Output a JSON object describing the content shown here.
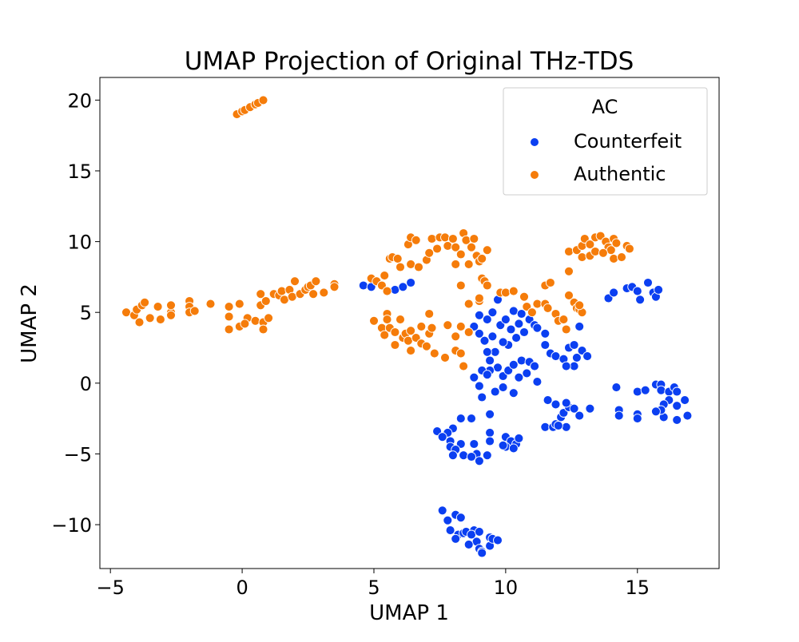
{
  "chart_data": {
    "type": "scatter",
    "title": "UMAP Projection of Original THz-TDS",
    "xlabel": "UMAP 1",
    "ylabel": "UMAP 2",
    "xlim": [
      -5.4,
      18.1
    ],
    "ylim": [
      -13.1,
      21.6
    ],
    "xticks": [
      -5,
      0,
      5,
      10,
      15
    ],
    "xtick_labels": [
      "−5",
      "0",
      "5",
      "10",
      "15"
    ],
    "yticks": [
      -10,
      -5,
      0,
      5,
      10,
      15,
      20
    ],
    "ytick_labels": [
      "−10",
      "−5",
      "0",
      "5",
      "10",
      "15",
      "20"
    ],
    "grid": false,
    "legend": {
      "title": "AC",
      "placement": "top-right"
    },
    "series": [
      {
        "name": "Counterfeit",
        "color": "#0b3ff1",
        "points": [
          [
            4.6,
            6.9
          ],
          [
            4.9,
            6.8
          ],
          [
            5.8,
            6.6
          ],
          [
            6.1,
            6.8
          ],
          [
            6.4,
            7.1
          ],
          [
            8.8,
            4.0
          ],
          [
            9.0,
            4.8
          ],
          [
            9.3,
            4.5
          ],
          [
            9.5,
            5.0
          ],
          [
            9.0,
            3.5
          ],
          [
            9.2,
            3.0
          ],
          [
            9.5,
            3.3
          ],
          [
            9.8,
            4.1
          ],
          [
            9.7,
            5.9
          ],
          [
            10.0,
            4.5
          ],
          [
            10.2,
            3.8
          ],
          [
            10.5,
            4.2
          ],
          [
            10.3,
            5.1
          ],
          [
            10.6,
            4.9
          ],
          [
            10.9,
            4.5
          ],
          [
            11.1,
            4.1
          ],
          [
            10.7,
            3.6
          ],
          [
            10.4,
            3.2
          ],
          [
            10.1,
            2.7
          ],
          [
            9.9,
            2.9
          ],
          [
            9.6,
            2.2
          ],
          [
            9.3,
            2.2
          ],
          [
            9.4,
            1.6
          ],
          [
            9.7,
            1.1
          ],
          [
            9.4,
            0.9
          ],
          [
            9.1,
            0.9
          ],
          [
            8.8,
            0.4
          ],
          [
            9.3,
            0.6
          ],
          [
            9.9,
            0.5
          ],
          [
            10.1,
            0.9
          ],
          [
            10.3,
            1.3
          ],
          [
            10.6,
            1.6
          ],
          [
            10.9,
            1.5
          ],
          [
            11.1,
            1.2
          ],
          [
            10.8,
            0.7
          ],
          [
            10.5,
            0.4
          ],
          [
            9.9,
            -0.3
          ],
          [
            10.3,
            -0.7
          ],
          [
            9.6,
            -0.6
          ],
          [
            9.1,
            -1.0
          ],
          [
            9.0,
            -0.2
          ],
          [
            11.2,
            0.1
          ],
          [
            11.5,
            2.7
          ],
          [
            11.7,
            2.1
          ],
          [
            11.9,
            1.9
          ],
          [
            12.2,
            1.7
          ],
          [
            12.4,
            2.5
          ],
          [
            12.6,
            2.7
          ],
          [
            12.7,
            1.8
          ],
          [
            12.9,
            2.3
          ],
          [
            13.1,
            1.9
          ],
          [
            12.6,
            1.2
          ],
          [
            12.3,
            1.2
          ],
          [
            11.2,
            3.9
          ],
          [
            11.5,
            3.5
          ],
          [
            12.8,
            4.0
          ],
          [
            9.4,
            -2.2
          ],
          [
            9.4,
            -3.5
          ],
          [
            8.7,
            -2.5
          ],
          [
            8.3,
            -2.5
          ],
          [
            8.0,
            -3.2
          ],
          [
            7.8,
            -3.5
          ],
          [
            7.4,
            -3.4
          ],
          [
            7.6,
            -3.8
          ],
          [
            7.9,
            -4.1
          ],
          [
            8.3,
            -4.3
          ],
          [
            7.9,
            -4.5
          ],
          [
            8.1,
            -4.7
          ],
          [
            8.0,
            -5.1
          ],
          [
            8.4,
            -5.1
          ],
          [
            8.8,
            -4.3
          ],
          [
            8.9,
            -5.0
          ],
          [
            8.7,
            -5.2
          ],
          [
            9.0,
            -5.5
          ],
          [
            9.3,
            -5.1
          ],
          [
            9.4,
            -4.1
          ],
          [
            10.0,
            -3.8
          ],
          [
            10.2,
            -4.1
          ],
          [
            10.4,
            -4.3
          ],
          [
            10.5,
            -3.9
          ],
          [
            10.0,
            -4.5
          ],
          [
            10.3,
            -4.6
          ],
          [
            9.9,
            -4.4
          ],
          [
            11.5,
            -3.1
          ],
          [
            11.8,
            -3.1
          ],
          [
            11.9,
            -2.9
          ],
          [
            12.1,
            -2.4
          ],
          [
            12.2,
            -2.1
          ],
          [
            12.4,
            -1.7
          ],
          [
            12.6,
            -1.8
          ],
          [
            12.8,
            -2.3
          ],
          [
            12.3,
            -3.1
          ],
          [
            12.0,
            -3.0
          ],
          [
            11.6,
            -1.2
          ],
          [
            11.9,
            -1.5
          ],
          [
            12.3,
            -1.4
          ],
          [
            13.2,
            -1.8
          ],
          [
            14.2,
            -0.3
          ],
          [
            14.3,
            -1.9
          ],
          [
            14.3,
            -2.3
          ],
          [
            15.0,
            -2.2
          ],
          [
            15.0,
            -2.5
          ],
          [
            15.0,
            -0.6
          ],
          [
            15.3,
            -0.5
          ],
          [
            15.7,
            -0.1
          ],
          [
            15.9,
            -0.1
          ],
          [
            15.9,
            -0.5
          ],
          [
            16.2,
            -0.6
          ],
          [
            16.4,
            -0.3
          ],
          [
            16.5,
            -0.6
          ],
          [
            16.8,
            -1.2
          ],
          [
            16.5,
            -1.6
          ],
          [
            16.2,
            -1.2
          ],
          [
            16.0,
            -1.5
          ],
          [
            16.0,
            -2.4
          ],
          [
            16.5,
            -2.6
          ],
          [
            16.9,
            -2.3
          ],
          [
            15.9,
            -1.9
          ],
          [
            15.7,
            -2.0
          ],
          [
            13.9,
            6.0
          ],
          [
            14.1,
            6.4
          ],
          [
            14.6,
            6.7
          ],
          [
            14.8,
            6.8
          ],
          [
            15.0,
            6.5
          ],
          [
            15.1,
            5.9
          ],
          [
            15.4,
            7.1
          ],
          [
            15.6,
            6.4
          ],
          [
            15.7,
            6.1
          ],
          [
            15.8,
            6.6
          ],
          [
            7.6,
            -9.0
          ],
          [
            7.8,
            -9.7
          ],
          [
            8.1,
            -9.3
          ],
          [
            8.3,
            -9.5
          ],
          [
            7.9,
            -10.4
          ],
          [
            8.2,
            -10.7
          ],
          [
            8.4,
            -10.6
          ],
          [
            8.5,
            -10.5
          ],
          [
            8.8,
            -10.4
          ],
          [
            8.7,
            -10.7
          ],
          [
            9.0,
            -10.5
          ],
          [
            8.9,
            -11.2
          ],
          [
            9.0,
            -11.7
          ],
          [
            9.1,
            -11.9
          ],
          [
            9.1,
            -12.0
          ],
          [
            9.4,
            -11.5
          ],
          [
            9.4,
            -10.9
          ],
          [
            9.5,
            -11.0
          ],
          [
            9.7,
            -11.1
          ],
          [
            8.6,
            -11.4
          ],
          [
            8.1,
            -11.0
          ]
        ]
      },
      {
        "name": "Authentic",
        "color": "#f57c0a",
        "points": [
          [
            -0.2,
            19.0
          ],
          [
            0.0,
            19.2
          ],
          [
            0.1,
            19.3
          ],
          [
            0.3,
            19.5
          ],
          [
            0.5,
            19.7
          ],
          [
            0.6,
            19.8
          ],
          [
            0.8,
            20.0
          ],
          [
            -4.4,
            5.0
          ],
          [
            -4.1,
            4.8
          ],
          [
            -4.0,
            5.2
          ],
          [
            -3.9,
            4.3
          ],
          [
            -3.8,
            5.5
          ],
          [
            -3.7,
            5.7
          ],
          [
            -3.5,
            4.6
          ],
          [
            -3.2,
            5.4
          ],
          [
            -3.1,
            4.5
          ],
          [
            -2.7,
            5.0
          ],
          [
            -2.7,
            4.8
          ],
          [
            -2.7,
            5.5
          ],
          [
            -2.0,
            5.8
          ],
          [
            -2.0,
            5.4
          ],
          [
            -2.0,
            5.0
          ],
          [
            -1.8,
            5.1
          ],
          [
            -1.2,
            5.6
          ],
          [
            -0.5,
            5.4
          ],
          [
            -0.5,
            4.7
          ],
          [
            -0.5,
            3.8
          ],
          [
            -0.1,
            5.6
          ],
          [
            -0.1,
            4.0
          ],
          [
            0.2,
            4.6
          ],
          [
            0.1,
            4.2
          ],
          [
            0.5,
            4.4
          ],
          [
            0.7,
            5.5
          ],
          [
            0.7,
            6.3
          ],
          [
            0.8,
            4.3
          ],
          [
            0.8,
            3.8
          ],
          [
            0.9,
            5.8
          ],
          [
            1.0,
            4.6
          ],
          [
            1.2,
            6.3
          ],
          [
            1.4,
            6.2
          ],
          [
            1.5,
            6.5
          ],
          [
            1.6,
            5.9
          ],
          [
            1.8,
            6.6
          ],
          [
            1.9,
            6.1
          ],
          [
            2.0,
            7.2
          ],
          [
            2.2,
            6.3
          ],
          [
            2.4,
            6.6
          ],
          [
            2.5,
            6.8
          ],
          [
            2.6,
            6.9
          ],
          [
            2.7,
            6.3
          ],
          [
            2.8,
            7.2
          ],
          [
            3.1,
            6.4
          ],
          [
            3.5,
            7.0
          ],
          [
            3.5,
            6.8
          ],
          [
            4.9,
            7.4
          ],
          [
            5.1,
            7.2
          ],
          [
            5.3,
            6.9
          ],
          [
            5.4,
            7.6
          ],
          [
            5.5,
            6.5
          ],
          [
            5.6,
            8.8
          ],
          [
            5.7,
            8.9
          ],
          [
            5.9,
            8.8
          ],
          [
            6.0,
            8.2
          ],
          [
            6.3,
            9.8
          ],
          [
            6.4,
            10.3
          ],
          [
            6.4,
            8.4
          ],
          [
            6.6,
            10.1
          ],
          [
            6.7,
            8.2
          ],
          [
            7.0,
            8.7
          ],
          [
            7.1,
            9.2
          ],
          [
            7.2,
            10.2
          ],
          [
            7.4,
            9.5
          ],
          [
            7.5,
            10.3
          ],
          [
            7.7,
            10.3
          ],
          [
            7.8,
            9.7
          ],
          [
            8.0,
            10.2
          ],
          [
            8.1,
            9.6
          ],
          [
            8.1,
            8.4
          ],
          [
            8.3,
            6.9
          ],
          [
            8.3,
            9.1
          ],
          [
            8.4,
            10.6
          ],
          [
            8.5,
            10.1
          ],
          [
            8.6,
            8.4
          ],
          [
            8.7,
            9.6
          ],
          [
            8.8,
            10.2
          ],
          [
            8.9,
            9.0
          ],
          [
            9.0,
            8.6
          ],
          [
            9.1,
            8.8
          ],
          [
            9.3,
            9.4
          ],
          [
            9.0,
            6.0
          ],
          [
            9.0,
            5.8
          ],
          [
            9.1,
            7.4
          ],
          [
            9.2,
            7.2
          ],
          [
            9.3,
            6.9
          ],
          [
            5.0,
            4.4
          ],
          [
            5.3,
            3.9
          ],
          [
            5.4,
            3.4
          ],
          [
            5.5,
            4.9
          ],
          [
            5.5,
            4.5
          ],
          [
            5.6,
            3.9
          ],
          [
            5.8,
            3.6
          ],
          [
            5.8,
            2.7
          ],
          [
            6.0,
            4.5
          ],
          [
            6.1,
            3.2
          ],
          [
            6.2,
            3.5
          ],
          [
            6.3,
            3.0
          ],
          [
            6.4,
            2.3
          ],
          [
            6.4,
            3.7
          ],
          [
            6.6,
            3.2
          ],
          [
            6.8,
            2.8
          ],
          [
            6.8,
            4.0
          ],
          [
            7.0,
            2.6
          ],
          [
            7.1,
            3.5
          ],
          [
            7.2,
            3.9
          ],
          [
            7.3,
            2.1
          ],
          [
            7.1,
            4.9
          ],
          [
            7.7,
            1.8
          ],
          [
            7.8,
            4.1
          ],
          [
            8.1,
            2.3
          ],
          [
            8.1,
            3.3
          ],
          [
            8.3,
            2.1
          ],
          [
            8.3,
            4.0
          ],
          [
            8.4,
            1.2
          ],
          [
            8.6,
            3.6
          ],
          [
            8.6,
            5.6
          ],
          [
            9.0,
            6.0
          ],
          [
            9.8,
            6.4
          ],
          [
            10.0,
            6.4
          ],
          [
            10.3,
            6.5
          ],
          [
            10.7,
            6.1
          ],
          [
            10.8,
            5.4
          ],
          [
            11.0,
            5.0
          ],
          [
            11.2,
            5.6
          ],
          [
            11.5,
            5.6
          ],
          [
            11.6,
            5.3
          ],
          [
            11.5,
            6.9
          ],
          [
            11.7,
            7.1
          ],
          [
            11.9,
            4.9
          ],
          [
            12.0,
            4.4
          ],
          [
            12.2,
            4.5
          ],
          [
            12.3,
            3.8
          ],
          [
            12.4,
            6.2
          ],
          [
            12.4,
            7.9
          ],
          [
            12.6,
            5.7
          ],
          [
            12.7,
            5.3
          ],
          [
            12.8,
            5.2
          ],
          [
            12.9,
            5.0
          ],
          [
            12.8,
            5.5
          ],
          [
            12.4,
            9.3
          ],
          [
            12.7,
            9.4
          ],
          [
            12.9,
            9.7
          ],
          [
            13.0,
            10.2
          ],
          [
            13.2,
            9.8
          ],
          [
            13.4,
            10.3
          ],
          [
            13.6,
            10.4
          ],
          [
            13.8,
            10.0
          ],
          [
            13.9,
            9.6
          ],
          [
            14.0,
            9.4
          ],
          [
            14.1,
            10.2
          ],
          [
            14.2,
            9.9
          ],
          [
            14.6,
            9.7
          ],
          [
            14.7,
            9.5
          ],
          [
            12.9,
            8.9
          ],
          [
            13.2,
            9.0
          ],
          [
            13.4,
            9.3
          ],
          [
            13.7,
            9.2
          ],
          [
            14.1,
            8.8
          ],
          [
            14.4,
            8.9
          ]
        ]
      }
    ]
  }
}
